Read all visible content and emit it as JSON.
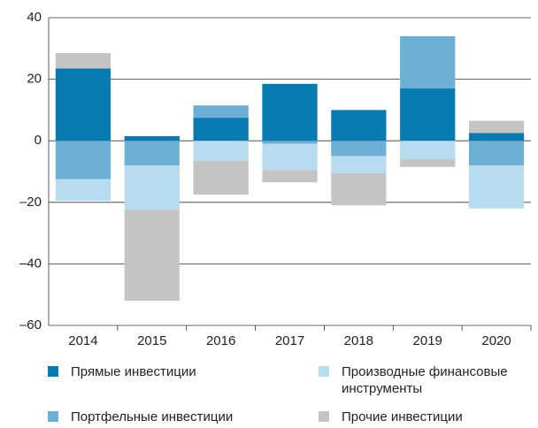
{
  "chart_data": {
    "type": "stacked_bar",
    "categories": [
      "2014",
      "2015",
      "2016",
      "2017",
      "2018",
      "2019",
      "2020"
    ],
    "series": [
      {
        "name": "Прямые инвестиции",
        "color": "#0a7bb0",
        "values": [
          23.5,
          1.5,
          7.5,
          18.5,
          10,
          17,
          2.5
        ]
      },
      {
        "name": "Портфельные инвестиции",
        "color": "#6cb0d6",
        "values": [
          -12.5,
          -8,
          4,
          -1,
          -5,
          17,
          -8
        ]
      },
      {
        "name": "Производные финансовые инструменты",
        "color": "#b7dcef",
        "values": [
          -7,
          -14.5,
          -6.5,
          -8.5,
          -5.5,
          -6,
          -14
        ]
      },
      {
        "name": "Прочие инвестиции",
        "color": "#c4c4c4",
        "values": [
          5,
          -29.5,
          -11,
          -4,
          -10.5,
          -2.5,
          4
        ]
      }
    ],
    "ylim": [
      -60,
      40
    ],
    "yticks": [
      40,
      20,
      0,
      {
        "value": -20,
        "label": "–20"
      },
      {
        "value": -40,
        "label": "–40"
      },
      {
        "value": -60,
        "label": "–60"
      }
    ],
    "grid": true
  }
}
